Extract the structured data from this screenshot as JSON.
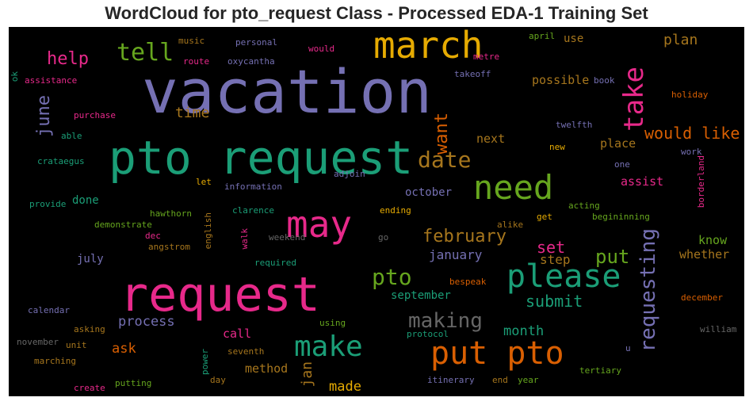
{
  "chart_data": {
    "type": "wordcloud",
    "title": "WordCloud for pto_request Class - Processed EDA-1 Training Set",
    "background": "#000000",
    "colormap": "Dark2",
    "words": [
      {
        "text": "vacation",
        "color": "#7570b3",
        "weight": 100
      },
      {
        "text": "pto request",
        "color": "#1b9e77",
        "weight": 78
      },
      {
        "text": "request",
        "color": "#e7298a",
        "weight": 78
      },
      {
        "text": "march",
        "color": "#e6ab02",
        "weight": 62
      },
      {
        "text": "may",
        "color": "#e7298a",
        "weight": 60
      },
      {
        "text": "please",
        "color": "#1b9e77",
        "weight": 56
      },
      {
        "text": "need",
        "color": "#66a61e",
        "weight": 55
      },
      {
        "text": "put pto",
        "color": "#d95f02",
        "weight": 54
      },
      {
        "text": "make",
        "color": "#1b9e77",
        "weight": 50
      },
      {
        "text": "take",
        "color": "#e7298a",
        "weight": 42
      },
      {
        "text": "tell",
        "color": "#66a61e",
        "weight": 42
      },
      {
        "text": "requesting",
        "color": "#7570b3",
        "weight": 38
      },
      {
        "text": "date",
        "color": "#a6761d",
        "weight": 36
      },
      {
        "text": "pto",
        "color": "#66a61e",
        "weight": 36
      },
      {
        "text": "making",
        "color": "#666666",
        "weight": 34
      },
      {
        "text": "want",
        "color": "#d95f02",
        "weight": 30
      },
      {
        "text": "june",
        "color": "#7570b3",
        "weight": 30
      },
      {
        "text": "put",
        "color": "#66a61e",
        "weight": 30
      },
      {
        "text": "help",
        "color": "#e7298a",
        "weight": 28
      },
      {
        "text": "february",
        "color": "#a6761d",
        "weight": 28
      },
      {
        "text": "would like",
        "color": "#d95f02",
        "weight": 26
      },
      {
        "text": "set",
        "color": "#e7298a",
        "weight": 25
      },
      {
        "text": "submit",
        "color": "#1b9e77",
        "weight": 25
      },
      {
        "text": "jan",
        "color": "#a6761d",
        "weight": 24
      },
      {
        "text": "time",
        "color": "#a6761d",
        "weight": 22
      },
      {
        "text": "plan",
        "color": "#a6761d",
        "weight": 22
      },
      {
        "text": "month",
        "color": "#1b9e77",
        "weight": 21
      },
      {
        "text": "process",
        "color": "#7570b3",
        "weight": 21
      },
      {
        "text": "january",
        "color": "#7570b3",
        "weight": 20
      },
      {
        "text": "ask",
        "color": "#d95f02",
        "weight": 20
      },
      {
        "text": "made",
        "color": "#e6ab02",
        "weight": 19
      },
      {
        "text": "step",
        "color": "#a6761d",
        "weight": 19
      },
      {
        "text": "place",
        "color": "#a6761d",
        "weight": 18
      },
      {
        "text": "possible",
        "color": "#a6761d",
        "weight": 18
      },
      {
        "text": "next",
        "color": "#a6761d",
        "weight": 17
      },
      {
        "text": "october",
        "color": "#7570b3",
        "weight": 17
      },
      {
        "text": "assist",
        "color": "#e7298a",
        "weight": 17
      },
      {
        "text": "know",
        "color": "#66a61e",
        "weight": 17
      },
      {
        "text": "whether",
        "color": "#a6761d",
        "weight": 17
      },
      {
        "text": "method",
        "color": "#a6761d",
        "weight": 17
      },
      {
        "text": "call",
        "color": "#e7298a",
        "weight": 17
      },
      {
        "text": "september",
        "color": "#1b9e77",
        "weight": 16
      },
      {
        "text": "use",
        "color": "#a6761d",
        "weight": 16
      },
      {
        "text": "july",
        "color": "#7570b3",
        "weight": 16
      },
      {
        "text": "done",
        "color": "#1b9e77",
        "weight": 16
      },
      {
        "text": "ok",
        "color": "#1b9e77",
        "weight": 12
      },
      {
        "text": "assistance",
        "color": "#e7298a",
        "weight": 12
      },
      {
        "text": "music",
        "color": "#a6761d",
        "weight": 12
      },
      {
        "text": "personal",
        "color": "#7570b3",
        "weight": 12
      },
      {
        "text": "would",
        "color": "#e7298a",
        "weight": 12
      },
      {
        "text": "route",
        "color": "#e7298a",
        "weight": 12
      },
      {
        "text": "oxycantha",
        "color": "#7570b3",
        "weight": 12
      },
      {
        "text": "metre",
        "color": "#e7298a",
        "weight": 12
      },
      {
        "text": "april",
        "color": "#66a61e",
        "weight": 12
      },
      {
        "text": "takeoff",
        "color": "#7570b3",
        "weight": 12
      },
      {
        "text": "book",
        "color": "#7570b3",
        "weight": 12
      },
      {
        "text": "holiday",
        "color": "#d95f02",
        "weight": 12
      },
      {
        "text": "purchase",
        "color": "#e7298a",
        "weight": 12
      },
      {
        "text": "able",
        "color": "#1b9e77",
        "weight": 12
      },
      {
        "text": "twelfth",
        "color": "#7570b3",
        "weight": 12
      },
      {
        "text": "new",
        "color": "#e6ab02",
        "weight": 12
      },
      {
        "text": "work",
        "color": "#7570b3",
        "weight": 12
      },
      {
        "text": "crataegus",
        "color": "#1b9e77",
        "weight": 12
      },
      {
        "text": "adjoin",
        "color": "#7570b3",
        "weight": 12
      },
      {
        "text": "one",
        "color": "#7570b3",
        "weight": 12
      },
      {
        "text": "borderland",
        "color": "#e7298a",
        "weight": 12
      },
      {
        "text": "let",
        "color": "#e6ab02",
        "weight": 12
      },
      {
        "text": "information",
        "color": "#7570b3",
        "weight": 12
      },
      {
        "text": "english",
        "color": "#a6761d",
        "weight": 12
      },
      {
        "text": "provide",
        "color": "#1b9e77",
        "weight": 12
      },
      {
        "text": "clarence",
        "color": "#1b9e77",
        "weight": 12
      },
      {
        "text": "ending",
        "color": "#e6ab02",
        "weight": 12
      },
      {
        "text": "acting",
        "color": "#66a61e",
        "weight": 12
      },
      {
        "text": "hawthorn",
        "color": "#66a61e",
        "weight": 12
      },
      {
        "text": "get",
        "color": "#e6ab02",
        "weight": 12
      },
      {
        "text": "begininning",
        "color": "#66a61e",
        "weight": 12
      },
      {
        "text": "demonstrate",
        "color": "#66a61e",
        "weight": 12
      },
      {
        "text": "alike",
        "color": "#a6761d",
        "weight": 12
      },
      {
        "text": "dec",
        "color": "#e7298a",
        "weight": 12
      },
      {
        "text": "walk",
        "color": "#e7298a",
        "weight": 12
      },
      {
        "text": "weekend",
        "color": "#666666",
        "weight": 12
      },
      {
        "text": "go",
        "color": "#666666",
        "weight": 12
      },
      {
        "text": "angstrom",
        "color": "#a6761d",
        "weight": 12
      },
      {
        "text": "required",
        "color": "#1b9e77",
        "weight": 12
      },
      {
        "text": "bespeak",
        "color": "#d95f02",
        "weight": 12
      },
      {
        "text": "calendar",
        "color": "#7570b3",
        "weight": 12
      },
      {
        "text": "december",
        "color": "#d95f02",
        "weight": 12
      },
      {
        "text": "asking",
        "color": "#a6761d",
        "weight": 12
      },
      {
        "text": "using",
        "color": "#66a61e",
        "weight": 12
      },
      {
        "text": "protocol",
        "color": "#1b9e77",
        "weight": 12
      },
      {
        "text": "william",
        "color": "#666666",
        "weight": 12
      },
      {
        "text": "november",
        "color": "#666666",
        "weight": 12
      },
      {
        "text": "unit",
        "color": "#a6761d",
        "weight": 12
      },
      {
        "text": "seventh",
        "color": "#a6761d",
        "weight": 12
      },
      {
        "text": "u",
        "color": "#7570b3",
        "weight": 12
      },
      {
        "text": "marching",
        "color": "#a6761d",
        "weight": 12
      },
      {
        "text": "power",
        "color": "#1b9e77",
        "weight": 12
      },
      {
        "text": "tertiary",
        "color": "#66a61e",
        "weight": 12
      },
      {
        "text": "day",
        "color": "#a6761d",
        "weight": 12
      },
      {
        "text": "putting",
        "color": "#66a61e",
        "weight": 12
      },
      {
        "text": "itinerary",
        "color": "#7570b3",
        "weight": 12
      },
      {
        "text": "end",
        "color": "#a6761d",
        "weight": 12
      },
      {
        "text": "year",
        "color": "#66a61e",
        "weight": 12
      },
      {
        "text": "create",
        "color": "#e7298a",
        "weight": 12
      }
    ]
  }
}
